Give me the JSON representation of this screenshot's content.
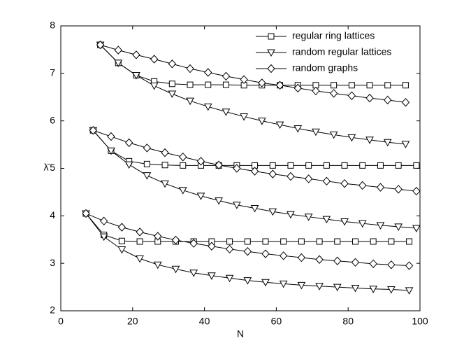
{
  "chart_data": {
    "type": "line",
    "xlabel": "N",
    "ylabel": "λ̄",
    "xlim": [
      0,
      100
    ],
    "ylim": [
      2,
      8
    ],
    "xticks": [
      0,
      20,
      40,
      60,
      80,
      100
    ],
    "yticks": [
      2,
      3,
      4,
      5,
      6,
      7,
      8
    ],
    "legend": "upper right",
    "series": [
      {
        "name": "regular ring lattices",
        "marker": "square",
        "color": "#000000",
        "groups": [
          {
            "x": [
              11,
              16,
              21,
              26,
              31,
              36,
              41,
              46,
              51,
              56,
              61,
              66,
              71,
              76,
              81,
              86,
              91,
              96
            ],
            "values": [
              7.6,
              7.22,
              6.96,
              6.83,
              6.78,
              6.76,
              6.76,
              6.76,
              6.75,
              6.75,
              6.75,
              6.75,
              6.75,
              6.75,
              6.75,
              6.75,
              6.75,
              6.75
            ]
          },
          {
            "x": [
              9,
              14,
              19,
              24,
              29,
              34,
              39,
              44,
              49,
              54,
              59,
              64,
              69,
              74,
              79,
              84,
              89,
              94,
              99
            ],
            "values": [
              5.8,
              5.37,
              5.15,
              5.09,
              5.07,
              5.06,
              5.06,
              5.06,
              5.06,
              5.06,
              5.06,
              5.06,
              5.06,
              5.06,
              5.06,
              5.06,
              5.06,
              5.06,
              5.06
            ]
          },
          {
            "x": [
              7,
              12,
              17,
              22,
              27,
              32,
              37,
              42,
              47,
              52,
              57,
              62,
              67,
              72,
              77,
              82,
              87,
              92,
              97
            ],
            "values": [
              4.05,
              3.6,
              3.47,
              3.46,
              3.46,
              3.46,
              3.46,
              3.46,
              3.46,
              3.46,
              3.46,
              3.46,
              3.46,
              3.46,
              3.46,
              3.46,
              3.46,
              3.46,
              3.46
            ]
          }
        ]
      },
      {
        "name": "random regular lattices",
        "marker": "triangle-down",
        "color": "#000000",
        "groups": [
          {
            "x": [
              11,
              16,
              21,
              26,
              31,
              36,
              41,
              46,
              51,
              56,
              61,
              66,
              71,
              76,
              81,
              86,
              91,
              96
            ],
            "values": [
              7.6,
              7.22,
              6.96,
              6.74,
              6.57,
              6.42,
              6.3,
              6.19,
              6.09,
              6.0,
              5.92,
              5.84,
              5.77,
              5.71,
              5.65,
              5.6,
              5.55,
              5.51
            ]
          },
          {
            "x": [
              9,
              14,
              19,
              24,
              29,
              34,
              39,
              44,
              49,
              54,
              59,
              64,
              69,
              74,
              79,
              84,
              89,
              94,
              99
            ],
            "values": [
              5.8,
              5.37,
              5.08,
              4.85,
              4.68,
              4.54,
              4.42,
              4.32,
              4.23,
              4.16,
              4.09,
              4.03,
              3.98,
              3.93,
              3.88,
              3.84,
              3.8,
              3.77,
              3.74
            ]
          },
          {
            "x": [
              7,
              12,
              17,
              22,
              27,
              32,
              37,
              42,
              47,
              52,
              57,
              62,
              67,
              72,
              77,
              82,
              87,
              92,
              97
            ],
            "values": [
              4.05,
              3.56,
              3.29,
              3.1,
              2.97,
              2.88,
              2.8,
              2.74,
              2.69,
              2.64,
              2.6,
              2.57,
              2.54,
              2.52,
              2.5,
              2.48,
              2.46,
              2.45,
              2.43
            ]
          }
        ]
      },
      {
        "name": "random graphs",
        "marker": "diamond",
        "color": "#000000",
        "groups": [
          {
            "x": [
              11,
              16,
              21,
              26,
              31,
              36,
              41,
              46,
              51,
              56,
              61,
              66,
              71,
              76,
              81,
              86,
              91,
              96
            ],
            "values": [
              7.6,
              7.49,
              7.39,
              7.3,
              7.2,
              7.1,
              7.02,
              6.94,
              6.87,
              6.8,
              6.75,
              6.69,
              6.63,
              6.58,
              6.53,
              6.48,
              6.44,
              6.39
            ]
          },
          {
            "x": [
              9,
              14,
              19,
              24,
              29,
              34,
              39,
              44,
              49,
              54,
              59,
              64,
              69,
              74,
              79,
              84,
              89,
              94,
              99
            ],
            "values": [
              5.8,
              5.67,
              5.54,
              5.43,
              5.33,
              5.24,
              5.15,
              5.07,
              5.0,
              4.94,
              4.88,
              4.83,
              4.78,
              4.73,
              4.68,
              4.64,
              4.6,
              4.56,
              4.52
            ]
          },
          {
            "x": [
              7,
              12,
              17,
              22,
              27,
              32,
              37,
              42,
              47,
              52,
              57,
              62,
              67,
              72,
              77,
              82,
              87,
              92,
              97
            ],
            "values": [
              4.05,
              3.89,
              3.76,
              3.66,
              3.57,
              3.49,
              3.42,
              3.36,
              3.3,
              3.25,
              3.2,
              3.16,
              3.12,
              3.08,
              3.05,
              3.02,
              2.99,
              2.97,
              2.95
            ]
          }
        ]
      }
    ]
  }
}
